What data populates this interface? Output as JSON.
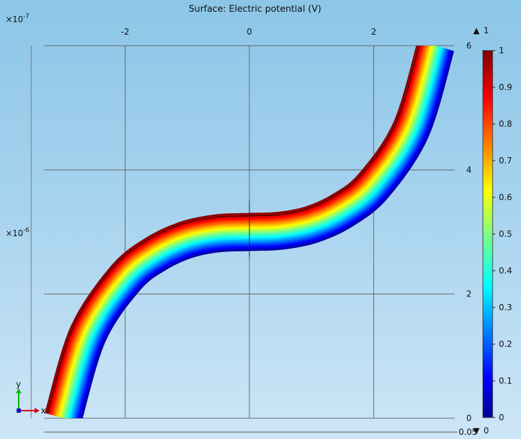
{
  "chart_data": {
    "type": "heatmap",
    "title": "Surface: Electric potential (V)",
    "x_exponent": "×10",
    "x_exponent_power": "-7",
    "y_exponent": "×10",
    "y_exponent_power": "-6",
    "xlim": [
      -3.3,
      3.3
    ],
    "ylim": [
      0,
      6
    ],
    "x_ticks": [
      -2,
      0,
      2
    ],
    "y_ticks": [
      0,
      2,
      4,
      6
    ],
    "grid": true,
    "colorbar": {
      "colormap": "jet",
      "range": [
        0,
        1
      ],
      "ticks": [
        0,
        0.1,
        0.2,
        0.3,
        0.4,
        0.5,
        0.6,
        0.7,
        0.8,
        0.9,
        1
      ],
      "max_label": "1",
      "min_label": "0",
      "max_marker": "▲",
      "min_marker": "▼"
    },
    "field": {
      "description": "S-shaped curved conducting channel, potential 1 V on upper/outer edge falling to 0 V on lower/inner edge",
      "centerline_x": [
        -3.0,
        -2.6,
        -2.0,
        -1.5,
        -1.0,
        -0.5,
        0.0,
        0.5,
        1.0,
        1.5,
        2.0,
        2.6,
        3.0
      ],
      "centerline_y": [
        0.0,
        1.35,
        2.25,
        2.65,
        2.88,
        2.98,
        3.0,
        3.02,
        3.12,
        3.35,
        3.75,
        4.65,
        6.0
      ],
      "width": 0.6,
      "value_upper_edge": 1,
      "value_lower_edge": 0
    },
    "axes_triad": {
      "x_label": "x",
      "y_label": "y"
    },
    "bottom_axis_label": "0.05"
  }
}
